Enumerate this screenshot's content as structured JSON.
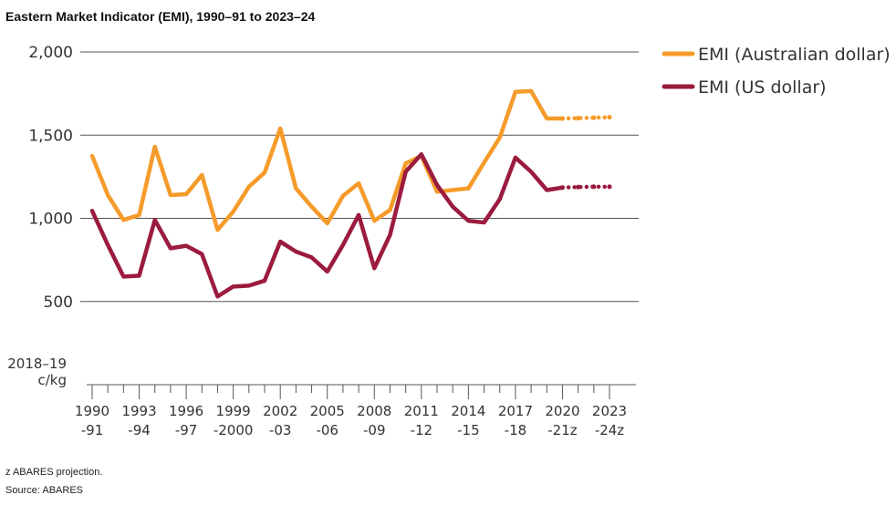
{
  "title": "Eastern Market Indicator (EMI), 1990–91 to 2023–24",
  "footnotes": {
    "projection": "z ABARES projection.",
    "source": "Source: ABARES"
  },
  "chart_data": {
    "type": "line",
    "ylabel_line1": "2018–19",
    "ylabel_line2": "c/kg",
    "ylim": [
      0,
      2000
    ],
    "yticks": [
      "2,000",
      "1,500",
      "1,000",
      "500"
    ],
    "ytick_values": [
      2000,
      1500,
      1000,
      500
    ],
    "grid": true,
    "legend_position": "top-right",
    "xtick_labels_top": [
      "1990",
      "1993",
      "1996",
      "1999",
      "2002",
      "2005",
      "2008",
      "2011",
      "2014",
      "2017",
      "2020",
      "2023"
    ],
    "xtick_labels_bottom": [
      "-91",
      "-94",
      "-97",
      "-2000",
      "-03",
      "-06",
      "-09",
      "-12",
      "-15",
      "-18",
      "-21z",
      "-24z"
    ],
    "x_start_year": 1990,
    "x_end_year": 2023,
    "projection_start_year": 2020,
    "series": [
      {
        "name": "EMI (Australian dollar)",
        "color": "#F59B2A",
        "values": [
          1375,
          1140,
          990,
          1020,
          1430,
          1140,
          1145,
          1260,
          930,
          1040,
          1190,
          1275,
          1540,
          1180,
          1070,
          970,
          1135,
          1210,
          985,
          1050,
          1330,
          1375,
          1160,
          1170,
          1180,
          1335,
          1485,
          1760,
          1765,
          1600,
          1600,
          1602,
          1605,
          1608
        ]
      },
      {
        "name": "EMI (US dollar)",
        "color": "#9B1B3E",
        "values": [
          null,
          null,
          null,
          null,
          null,
          null,
          null,
          null,
          null,
          null,
          null,
          null,
          null,
          null,
          null,
          null,
          null,
          null,
          null,
          null,
          null,
          null,
          null,
          null,
          null,
          null,
          null,
          null,
          null,
          null,
          null,
          null,
          null,
          null
        ],
        "values_from_1990": [
          1045,
          840,
          650,
          655,
          990,
          820,
          835,
          785,
          530,
          590,
          595,
          625,
          860,
          800,
          765,
          680,
          840,
          1020,
          700,
          900,
          1280,
          1385,
          1200,
          1070,
          985,
          975,
          1115,
          1365,
          1280,
          1170,
          1185,
          1188,
          1190,
          1190
        ]
      }
    ]
  }
}
